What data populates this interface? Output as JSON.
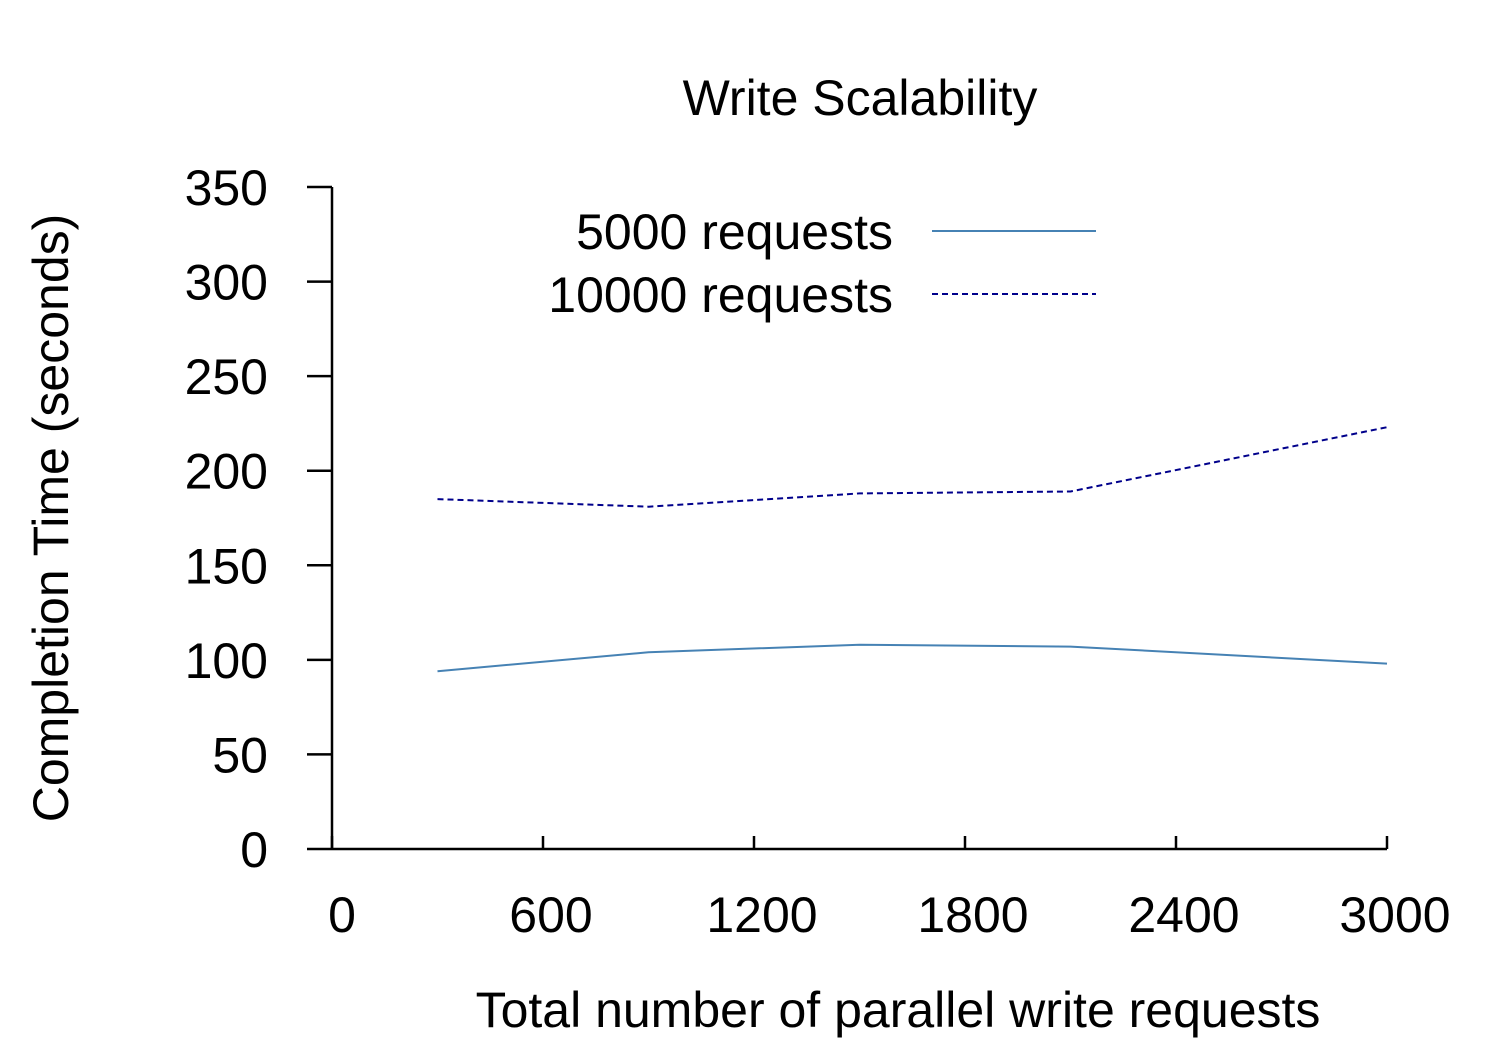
{
  "chart_data": {
    "type": "line",
    "title": "Write Scalability",
    "xlabel": "Total number of parallel write requests",
    "ylabel": "Completion Time (seconds)",
    "xlim": [
      0,
      3000
    ],
    "ylim": [
      0,
      350
    ],
    "xticks": [
      0,
      600,
      1200,
      1800,
      2400,
      3000
    ],
    "yticks": [
      0,
      50,
      100,
      150,
      200,
      250,
      300,
      350
    ],
    "grid": false,
    "legend_position": "top-center",
    "series": [
      {
        "name": "5000 requests",
        "color": "#4682b4",
        "dash": "solid",
        "x": [
          300,
          900,
          1500,
          2100,
          3000
        ],
        "y": [
          94,
          104,
          108,
          107,
          98
        ]
      },
      {
        "name": "10000 requests",
        "color": "#00008b",
        "dash": "dashed",
        "x": [
          300,
          900,
          1500,
          2100,
          3000
        ],
        "y": [
          185,
          181,
          188,
          189,
          223
        ]
      }
    ]
  }
}
